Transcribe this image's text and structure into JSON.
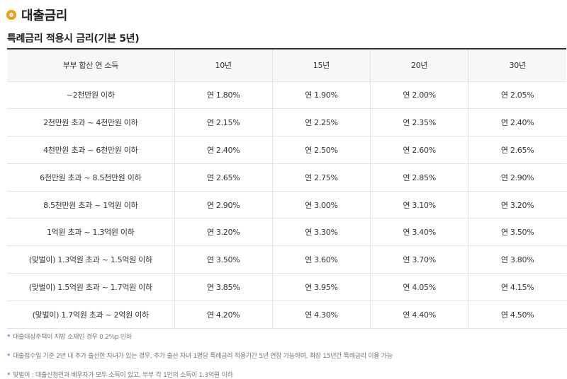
{
  "section": {
    "title": "대출금리"
  },
  "table_title": "특례금리 적용시 금리(기본 5년)",
  "table": {
    "headers": [
      "부부 합산 연 소득",
      "10년",
      "15년",
      "20년",
      "30년"
    ],
    "rows": [
      {
        "income": "~2천만원 이하",
        "rates": [
          "연 1.80%",
          "연 1.90%",
          "연 2.00%",
          "연 2.05%"
        ]
      },
      {
        "income": "2천만원 초과 ~ 4천만원 이하",
        "rates": [
          "연 2.15%",
          "연 2.25%",
          "연 2.35%",
          "연 2.40%"
        ]
      },
      {
        "income": "4천만원 초과 ~ 6천만원 이하",
        "rates": [
          "연 2.40%",
          "연 2.50%",
          "연 2.60%",
          "연 2.65%"
        ]
      },
      {
        "income": "6천만원 초과 ~ 8.5천만원 이하",
        "rates": [
          "연 2.65%",
          "연 2.75%",
          "연 2.85%",
          "연 2.90%"
        ]
      },
      {
        "income": "8.5천만원 초과 ~ 1억원 이하",
        "rates": [
          "연 2.90%",
          "연 3.00%",
          "연 3.10%",
          "연 3.20%"
        ]
      },
      {
        "income": "1억원 초과 ~ 1.3억원 이하",
        "rates": [
          "연 3.20%",
          "연 3.30%",
          "연 3.40%",
          "연 3.50%"
        ]
      },
      {
        "income": "(맞벌이) 1.3억원 초과 ~ 1.5억원 이하",
        "rates": [
          "연 3.50%",
          "연 3.60%",
          "연 3.70%",
          "연 3.80%"
        ]
      },
      {
        "income": "(맞벌이) 1.5억원 초과 ~ 1.7억원 이하",
        "rates": [
          "연 3.85%",
          "연 3.95%",
          "연 4.05%",
          "연 4.15%"
        ]
      },
      {
        "income": "(맞벌이) 1.7억원 초과 ~ 2억원 이하",
        "rates": [
          "연 4.20%",
          "연 4.30%",
          "연 4.40%",
          "연 4.50%"
        ]
      }
    ]
  },
  "notes": {
    "marker": "*",
    "items": [
      "대출대상주택이 지방 소재인 경우 0.2%p 인하",
      "대출접수일 기준 2년 내 추가 출산한 자녀가 있는 경우, 추가 출산 자녀 1명당 특례금리 적용기간 5년 연장 가능하며, 최장 15년간 특례금리 이용 가능",
      "맞벌이 : 대출신청인과 배우자가 모두 소득이 있고, 부부 각 1인의 소득이 1.3억원 이하"
    ]
  },
  "colors": {
    "accent": "#f39c12",
    "note_marker": "#1f6fd6",
    "header_bg": "#f7f7f7"
  }
}
